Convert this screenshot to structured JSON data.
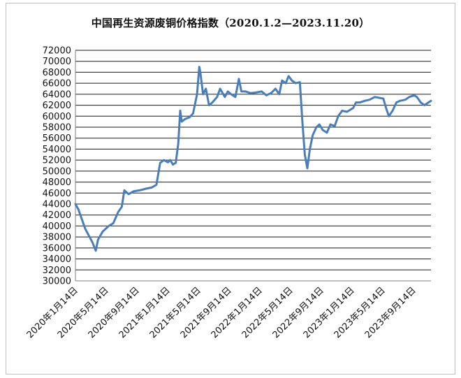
{
  "chart_data": {
    "type": "line",
    "title": "中国再生资源废铜价格指数（2020.1.2—2023.11.20）",
    "xlabel": "",
    "ylabel": "",
    "ylim": [
      30000,
      72000
    ],
    "ytick_step": 2000,
    "grid": true,
    "legend": "none",
    "line_color": "#4a7ebb",
    "x_tick_labels": [
      "2020年1月14日",
      "2020年5月14日",
      "2020年9月14日",
      "2021年1月14日",
      "2021年5月14日",
      "2021年9月14日",
      "2022年1月14日",
      "2022年5月14日",
      "2022年9月14日",
      "2023年1月14日",
      "2023年5月14日",
      "2023年9月14日"
    ],
    "x_range": [
      "2020-01-02",
      "2023-11-20"
    ],
    "series": [
      {
        "points": [
          [
            "2020-01-02",
            44000
          ],
          [
            "2020-01-14",
            43000
          ],
          [
            "2020-02-10",
            39500
          ],
          [
            "2020-03-10",
            37000
          ],
          [
            "2020-03-23",
            35500
          ],
          [
            "2020-04-01",
            37500
          ],
          [
            "2020-04-20",
            39000
          ],
          [
            "2020-05-14",
            40000
          ],
          [
            "2020-06-01",
            40500
          ],
          [
            "2020-06-20",
            42500
          ],
          [
            "2020-07-05",
            43500
          ],
          [
            "2020-07-15",
            46500
          ],
          [
            "2020-08-01",
            45800
          ],
          [
            "2020-08-20",
            46300
          ],
          [
            "2020-09-14",
            46500
          ],
          [
            "2020-10-10",
            46800
          ],
          [
            "2020-11-01",
            47000
          ],
          [
            "2020-11-20",
            47500
          ],
          [
            "2020-12-05",
            51500
          ],
          [
            "2020-12-20",
            52000
          ],
          [
            "2021-01-05",
            51600
          ],
          [
            "2021-01-14",
            52000
          ],
          [
            "2021-01-25",
            51200
          ],
          [
            "2021-02-05",
            51500
          ],
          [
            "2021-02-15",
            55000
          ],
          [
            "2021-02-23",
            61000
          ],
          [
            "2021-03-01",
            59000
          ],
          [
            "2021-03-15",
            59500
          ],
          [
            "2021-04-01",
            59800
          ],
          [
            "2021-04-15",
            60500
          ],
          [
            "2021-05-01",
            64000
          ],
          [
            "2021-05-10",
            69000
          ],
          [
            "2021-05-14",
            68000
          ],
          [
            "2021-05-25",
            64000
          ],
          [
            "2021-06-05",
            65000
          ],
          [
            "2021-06-18",
            62000
          ],
          [
            "2021-07-01",
            62500
          ],
          [
            "2021-07-20",
            63500
          ],
          [
            "2021-08-01",
            65000
          ],
          [
            "2021-08-20",
            63500
          ],
          [
            "2021-09-01",
            64500
          ],
          [
            "2021-09-14",
            64000
          ],
          [
            "2021-10-01",
            63500
          ],
          [
            "2021-10-15",
            66800
          ],
          [
            "2021-10-25",
            64500
          ],
          [
            "2021-11-10",
            64500
          ],
          [
            "2021-12-01",
            64200
          ],
          [
            "2021-12-20",
            64300
          ],
          [
            "2022-01-14",
            64500
          ],
          [
            "2022-02-01",
            63800
          ],
          [
            "2022-02-20",
            64200
          ],
          [
            "2022-03-10",
            65000
          ],
          [
            "2022-03-25",
            64000
          ],
          [
            "2022-04-05",
            66500
          ],
          [
            "2022-04-20",
            66000
          ],
          [
            "2022-05-01",
            67300
          ],
          [
            "2022-05-14",
            66500
          ],
          [
            "2022-05-30",
            66000
          ],
          [
            "2022-06-15",
            66200
          ],
          [
            "2022-06-25",
            59000
          ],
          [
            "2022-07-05",
            53000
          ],
          [
            "2022-07-15",
            50500
          ],
          [
            "2022-07-25",
            54000
          ],
          [
            "2022-08-05",
            56500
          ],
          [
            "2022-08-20",
            58000
          ],
          [
            "2022-09-01",
            58500
          ],
          [
            "2022-09-14",
            57500
          ],
          [
            "2022-10-01",
            57000
          ],
          [
            "2022-10-15",
            58500
          ],
          [
            "2022-11-01",
            58200
          ],
          [
            "2022-11-15",
            60000
          ],
          [
            "2022-12-01",
            61000
          ],
          [
            "2022-12-20",
            60800
          ],
          [
            "2023-01-14",
            61500
          ],
          [
            "2023-01-25",
            62500
          ],
          [
            "2023-02-10",
            62500
          ],
          [
            "2023-03-01",
            62800
          ],
          [
            "2023-03-20",
            63000
          ],
          [
            "2023-04-10",
            63500
          ],
          [
            "2023-05-14",
            63200
          ],
          [
            "2023-05-25",
            61500
          ],
          [
            "2023-06-05",
            60000
          ],
          [
            "2023-06-20",
            61000
          ],
          [
            "2023-07-05",
            62500
          ],
          [
            "2023-07-20",
            62800
          ],
          [
            "2023-08-10",
            63000
          ],
          [
            "2023-08-25",
            63500
          ],
          [
            "2023-09-14",
            63800
          ],
          [
            "2023-09-25",
            63500
          ],
          [
            "2023-10-10",
            62500
          ],
          [
            "2023-10-25",
            62000
          ],
          [
            "2023-11-10",
            62500
          ],
          [
            "2023-11-20",
            62800
          ]
        ]
      }
    ]
  }
}
